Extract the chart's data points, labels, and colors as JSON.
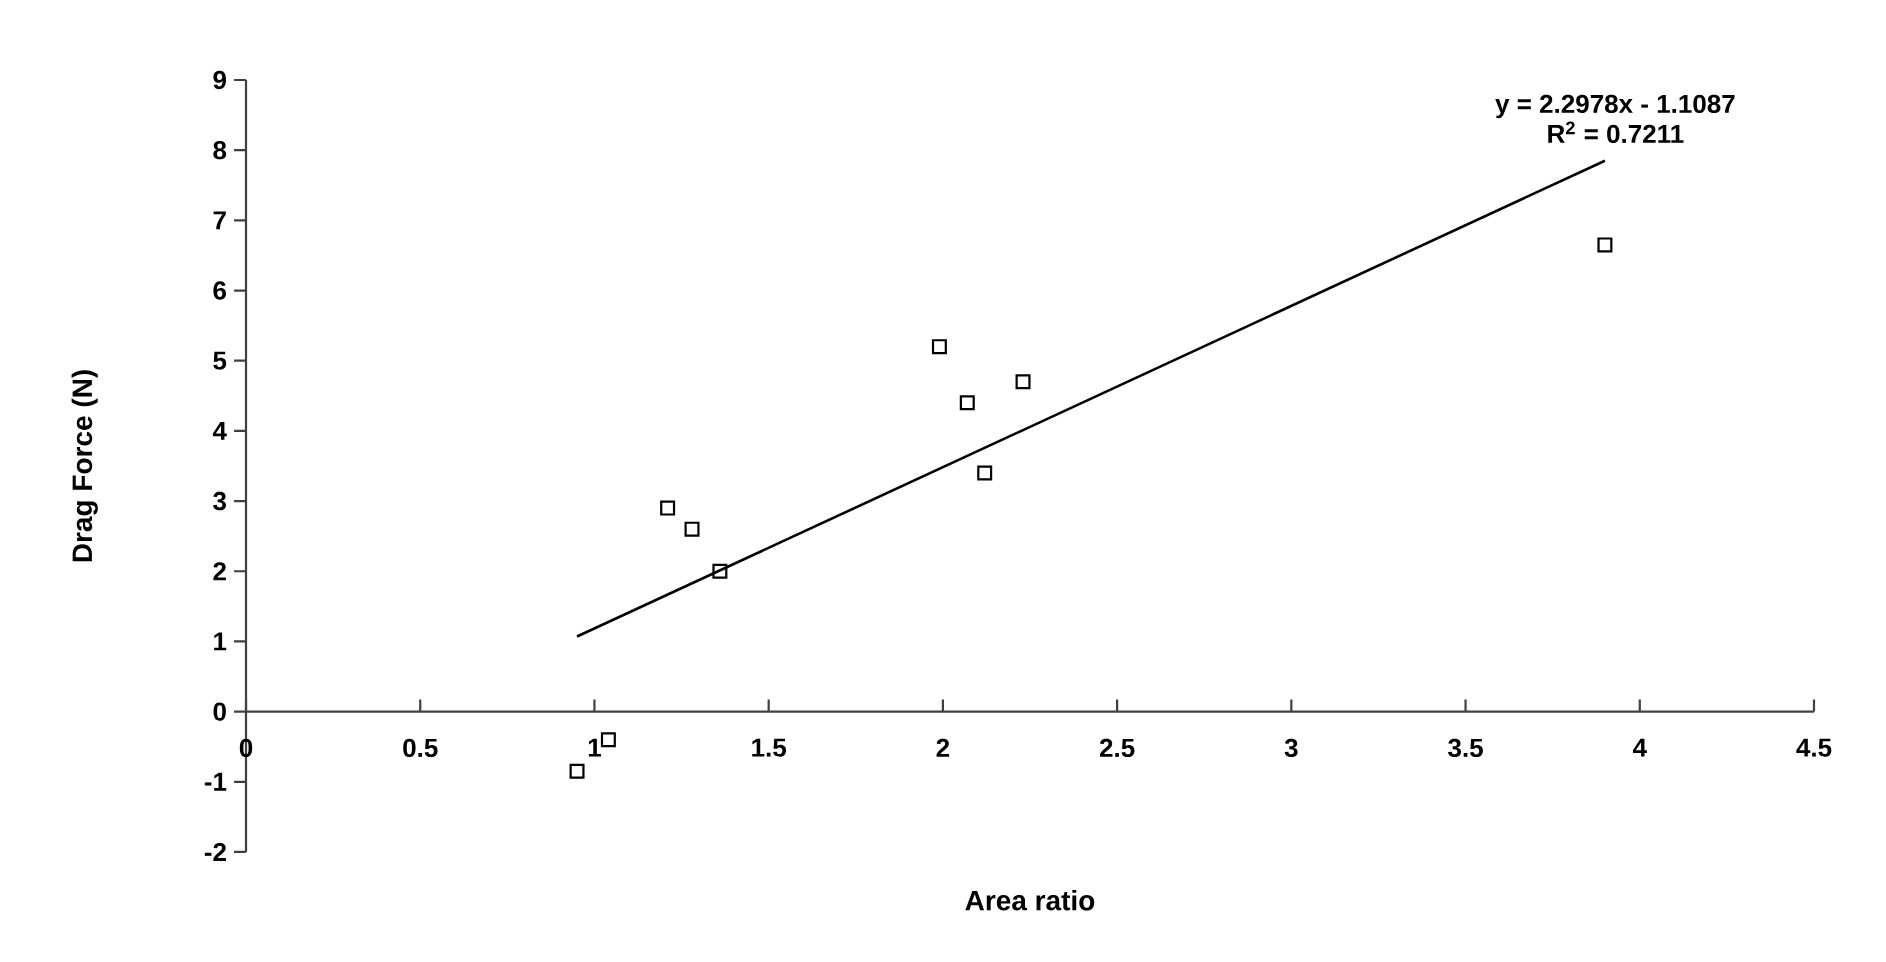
{
  "chart_data": {
    "type": "scatter",
    "xlabel": "Area ratio",
    "ylabel": "Drag Force (N)",
    "xlim": [
      0,
      4.5
    ],
    "ylim": [
      -2,
      9
    ],
    "xticks": [
      0,
      0.5,
      1,
      1.5,
      2,
      2.5,
      3,
      3.5,
      4,
      4.5
    ],
    "yticks": [
      -2,
      -1,
      0,
      1,
      2,
      3,
      4,
      5,
      6,
      7,
      8,
      9
    ],
    "grid": false,
    "series": [
      {
        "color": "#000000",
        "marker": "square",
        "x": [
          0.95,
          1.04,
          1.21,
          1.28,
          1.36,
          1.99,
          2.07,
          2.12,
          2.23,
          3.9
        ],
        "values": [
          -0.85,
          -0.4,
          2.9,
          2.6,
          2.0,
          5.2,
          4.4,
          3.4,
          4.7,
          6.65
        ]
      },
      {
        "type": "line",
        "color": "#000000",
        "marker": "none",
        "line_style": "solid",
        "x": [
          0.95,
          3.9
        ],
        "values": [
          1.07,
          7.85
        ]
      }
    ],
    "annotations": [
      "y = 2.2978x - 1.1087",
      "R$^{2}$ = 0.7211"
    ]
  }
}
